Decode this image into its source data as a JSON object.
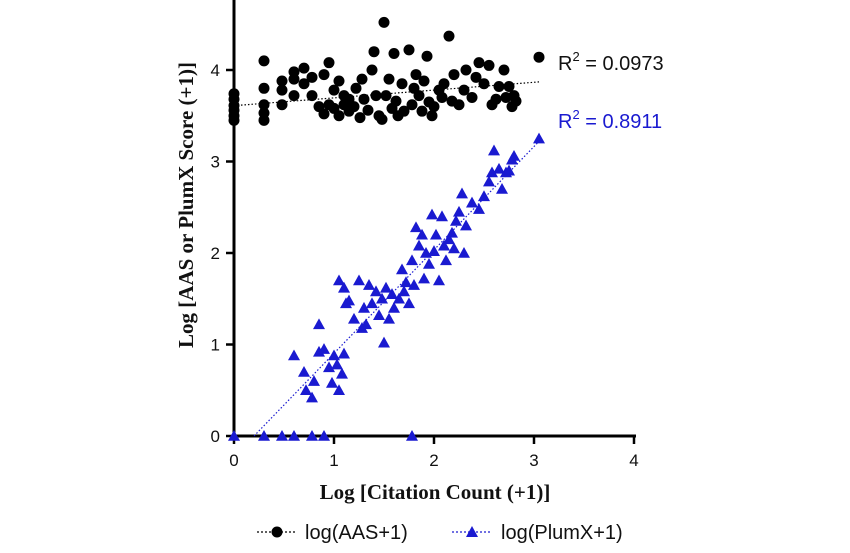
{
  "chart_data": {
    "type": "scatter",
    "xlabel": "Log [Citation Count (+1)]",
    "ylabel": "Log [AAS or PlumX Score (+1)]",
    "xlim": [
      0,
      4
    ],
    "ylim": [
      0,
      4.6
    ],
    "xticks": [
      "0",
      "1",
      "2",
      "3",
      "4"
    ],
    "yticks": [
      "0",
      "1",
      "2",
      "3",
      "4"
    ],
    "grid": false,
    "legend_position": "bottom",
    "series": [
      {
        "name": "log(AAS+1)",
        "marker": "circle",
        "color": "#000000",
        "r2_label": "R",
        "r2_sup": "2",
        "r2_value": " = 0.0973",
        "trendline": [
          [
            0,
            3.61
          ],
          [
            3.05,
            3.87
          ]
        ],
        "points": [
          [
            0.0,
            3.5
          ],
          [
            0.0,
            3.56
          ],
          [
            0.0,
            3.61
          ],
          [
            0.0,
            3.68
          ],
          [
            0.0,
            3.74
          ],
          [
            0.0,
            3.45
          ],
          [
            0.3,
            3.45
          ],
          [
            0.3,
            3.53
          ],
          [
            0.3,
            3.62
          ],
          [
            0.3,
            3.8
          ],
          [
            0.3,
            4.1
          ],
          [
            0.48,
            3.62
          ],
          [
            0.48,
            3.78
          ],
          [
            0.48,
            3.88
          ],
          [
            0.6,
            3.72
          ],
          [
            0.6,
            3.9
          ],
          [
            0.6,
            3.98
          ],
          [
            0.7,
            3.85
          ],
          [
            0.7,
            4.02
          ],
          [
            0.78,
            3.72
          ],
          [
            0.78,
            3.92
          ],
          [
            0.85,
            3.6
          ],
          [
            0.9,
            3.52
          ],
          [
            0.9,
            3.95
          ],
          [
            0.95,
            3.62
          ],
          [
            0.95,
            4.08
          ],
          [
            1.0,
            3.58
          ],
          [
            1.0,
            3.78
          ],
          [
            1.05,
            3.5
          ],
          [
            1.05,
            3.88
          ],
          [
            1.1,
            3.62
          ],
          [
            1.1,
            3.72
          ],
          [
            1.15,
            3.55
          ],
          [
            1.15,
            3.68
          ],
          [
            1.2,
            3.6
          ],
          [
            1.22,
            3.8
          ],
          [
            1.26,
            3.48
          ],
          [
            1.28,
            3.9
          ],
          [
            1.3,
            3.68
          ],
          [
            1.34,
            3.56
          ],
          [
            1.38,
            4.0
          ],
          [
            1.4,
            4.2
          ],
          [
            1.42,
            3.72
          ],
          [
            1.45,
            3.5
          ],
          [
            1.48,
            3.46
          ],
          [
            1.5,
            4.52
          ],
          [
            1.52,
            3.72
          ],
          [
            1.55,
            3.9
          ],
          [
            1.58,
            3.58
          ],
          [
            1.6,
            4.18
          ],
          [
            1.62,
            3.66
          ],
          [
            1.64,
            3.5
          ],
          [
            1.68,
            3.85
          ],
          [
            1.7,
            3.55
          ],
          [
            1.75,
            4.22
          ],
          [
            1.78,
            3.62
          ],
          [
            1.8,
            3.8
          ],
          [
            1.82,
            3.95
          ],
          [
            1.85,
            3.72
          ],
          [
            1.88,
            3.55
          ],
          [
            1.9,
            3.88
          ],
          [
            1.93,
            4.15
          ],
          [
            1.95,
            3.65
          ],
          [
            1.98,
            3.5
          ],
          [
            2.0,
            3.6
          ],
          [
            2.05,
            3.78
          ],
          [
            2.08,
            3.7
          ],
          [
            2.1,
            3.85
          ],
          [
            2.15,
            4.37
          ],
          [
            2.18,
            3.66
          ],
          [
            2.2,
            3.95
          ],
          [
            2.25,
            3.62
          ],
          [
            2.3,
            3.78
          ],
          [
            2.32,
            4.0
          ],
          [
            2.38,
            3.7
          ],
          [
            2.42,
            3.92
          ],
          [
            2.45,
            4.08
          ],
          [
            2.5,
            3.85
          ],
          [
            2.55,
            4.05
          ],
          [
            2.58,
            3.62
          ],
          [
            2.62,
            3.68
          ],
          [
            2.65,
            3.82
          ],
          [
            2.7,
            4.0
          ],
          [
            2.72,
            3.7
          ],
          [
            2.75,
            3.82
          ],
          [
            2.78,
            3.6
          ],
          [
            2.8,
            3.72
          ],
          [
            2.82,
            3.66
          ],
          [
            3.05,
            4.14
          ]
        ]
      },
      {
        "name": "log(PlumX+1)",
        "marker": "triangle",
        "color": "#1a1ad0",
        "r2_label": "R",
        "r2_sup": "2",
        "r2_value": " = 0.8911",
        "trendline": [
          [
            0.2,
            0.0
          ],
          [
            3.05,
            3.22
          ]
        ],
        "points": [
          [
            0.0,
            0.0
          ],
          [
            0.3,
            0.0
          ],
          [
            0.48,
            0.0
          ],
          [
            0.6,
            0.0
          ],
          [
            0.78,
            0.0
          ],
          [
            0.9,
            0.0
          ],
          [
            1.78,
            0.0
          ],
          [
            0.6,
            0.88
          ],
          [
            0.7,
            0.7
          ],
          [
            0.72,
            0.5
          ],
          [
            0.78,
            0.42
          ],
          [
            0.8,
            0.6
          ],
          [
            0.85,
            0.92
          ],
          [
            0.85,
            1.22
          ],
          [
            0.9,
            0.95
          ],
          [
            0.95,
            0.75
          ],
          [
            0.98,
            0.58
          ],
          [
            1.0,
            0.88
          ],
          [
            1.03,
            0.78
          ],
          [
            1.05,
            0.5
          ],
          [
            1.08,
            0.68
          ],
          [
            1.1,
            0.9
          ],
          [
            1.05,
            1.7
          ],
          [
            1.1,
            1.62
          ],
          [
            1.12,
            1.45
          ],
          [
            1.15,
            1.48
          ],
          [
            1.2,
            1.28
          ],
          [
            1.25,
            1.7
          ],
          [
            1.28,
            1.18
          ],
          [
            1.3,
            1.4
          ],
          [
            1.32,
            1.22
          ],
          [
            1.35,
            1.65
          ],
          [
            1.38,
            1.45
          ],
          [
            1.42,
            1.58
          ],
          [
            1.45,
            1.32
          ],
          [
            1.48,
            1.5
          ],
          [
            1.5,
            1.02
          ],
          [
            1.52,
            1.62
          ],
          [
            1.55,
            1.28
          ],
          [
            1.58,
            1.55
          ],
          [
            1.6,
            1.4
          ],
          [
            1.65,
            1.5
          ],
          [
            1.68,
            1.82
          ],
          [
            1.7,
            1.58
          ],
          [
            1.72,
            1.68
          ],
          [
            1.75,
            1.45
          ],
          [
            1.78,
            1.92
          ],
          [
            1.8,
            1.65
          ],
          [
            1.82,
            2.28
          ],
          [
            1.85,
            2.08
          ],
          [
            1.88,
            2.2
          ],
          [
            1.9,
            1.72
          ],
          [
            1.92,
            2.0
          ],
          [
            1.95,
            1.88
          ],
          [
            1.98,
            2.42
          ],
          [
            2.0,
            2.02
          ],
          [
            2.02,
            2.2
          ],
          [
            2.05,
            1.7
          ],
          [
            2.08,
            2.4
          ],
          [
            2.1,
            2.08
          ],
          [
            2.12,
            1.92
          ],
          [
            2.15,
            2.15
          ],
          [
            2.18,
            2.22
          ],
          [
            2.2,
            2.05
          ],
          [
            2.22,
            2.35
          ],
          [
            2.25,
            2.45
          ],
          [
            2.28,
            2.65
          ],
          [
            2.3,
            2.0
          ],
          [
            2.32,
            2.3
          ],
          [
            2.38,
            2.55
          ],
          [
            2.45,
            2.48
          ],
          [
            2.5,
            2.62
          ],
          [
            2.55,
            2.78
          ],
          [
            2.58,
            2.88
          ],
          [
            2.6,
            3.12
          ],
          [
            2.65,
            2.92
          ],
          [
            2.68,
            2.7
          ],
          [
            2.72,
            2.88
          ],
          [
            2.75,
            2.9
          ],
          [
            2.78,
            3.02
          ],
          [
            2.8,
            3.06
          ],
          [
            3.05,
            3.25
          ]
        ]
      }
    ]
  }
}
